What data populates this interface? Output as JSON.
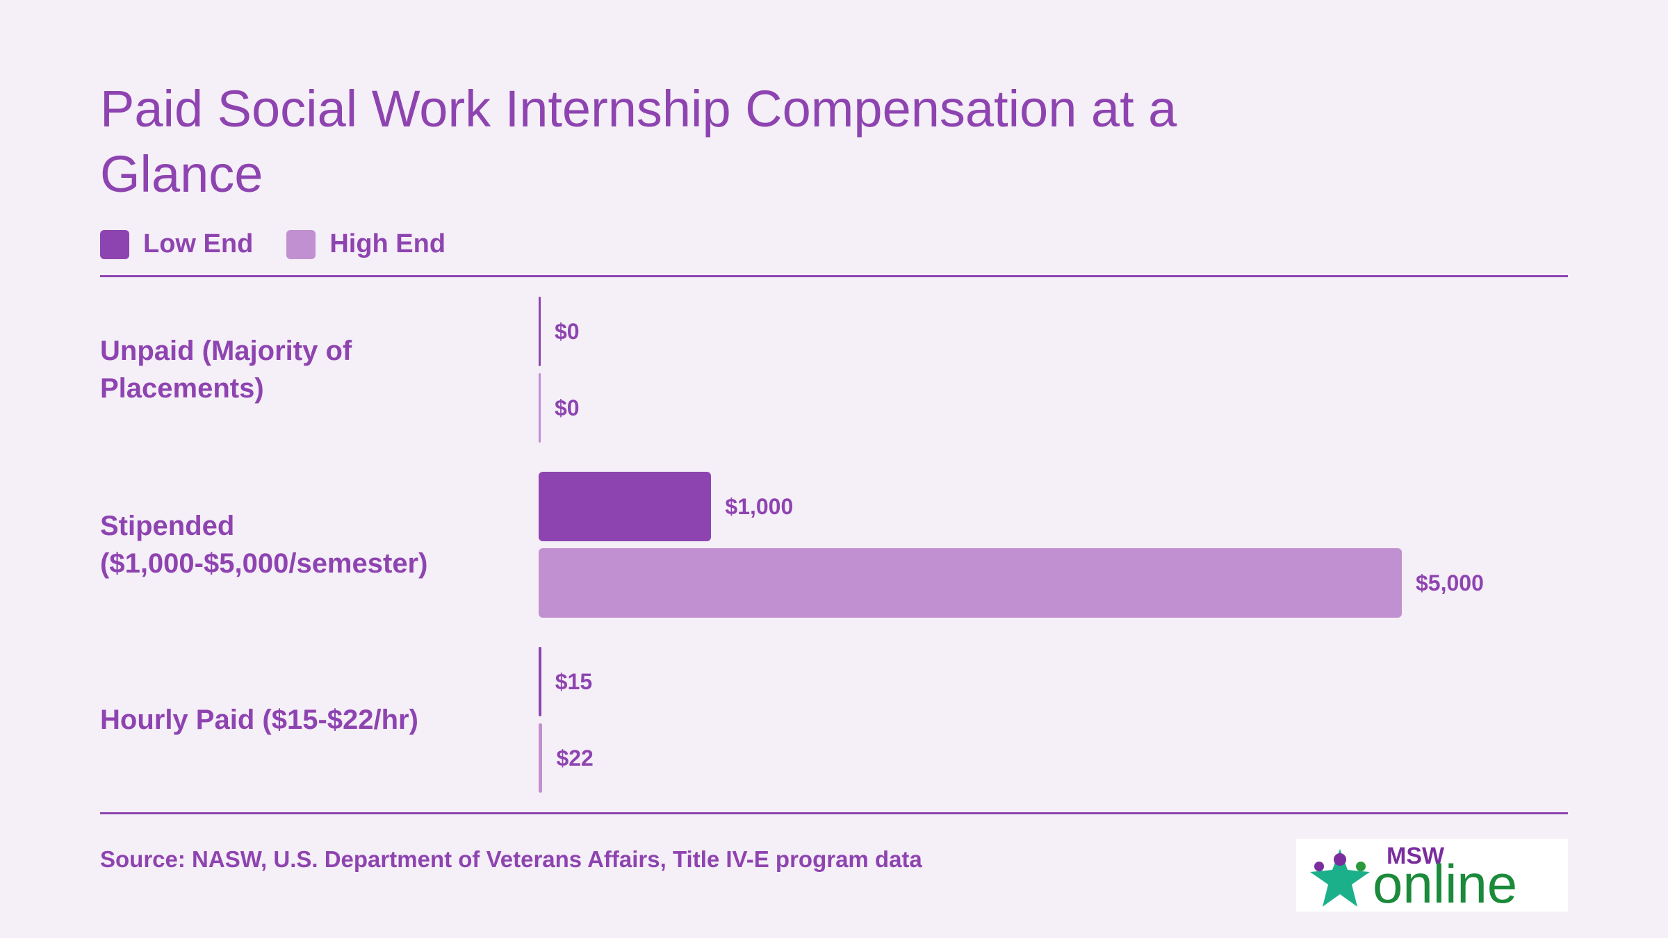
{
  "chart_data": {
    "type": "bar",
    "orientation": "horizontal",
    "title": "Paid Social Work Internship Compensation at a Glance",
    "categories": [
      "Unpaid (Majority of Placements)",
      "Stipended ($1,000-$5,000/semester)",
      "Hourly Paid ($15-$22/hr)"
    ],
    "series": [
      {
        "name": "Low End",
        "color": "#8e44b0",
        "values": [
          0,
          1000,
          15
        ],
        "value_labels": [
          "$0",
          "$1,000",
          "$15"
        ]
      },
      {
        "name": "High End",
        "color": "#c090d0",
        "values": [
          0,
          5000,
          22
        ],
        "value_labels": [
          "$0",
          "$5,000",
          "$22"
        ]
      }
    ],
    "source": "Source: NASW, U.S. Department of Veterans Affairs, Title IV-E program data",
    "logo": {
      "top": "MSW",
      "bottom": "online"
    }
  }
}
